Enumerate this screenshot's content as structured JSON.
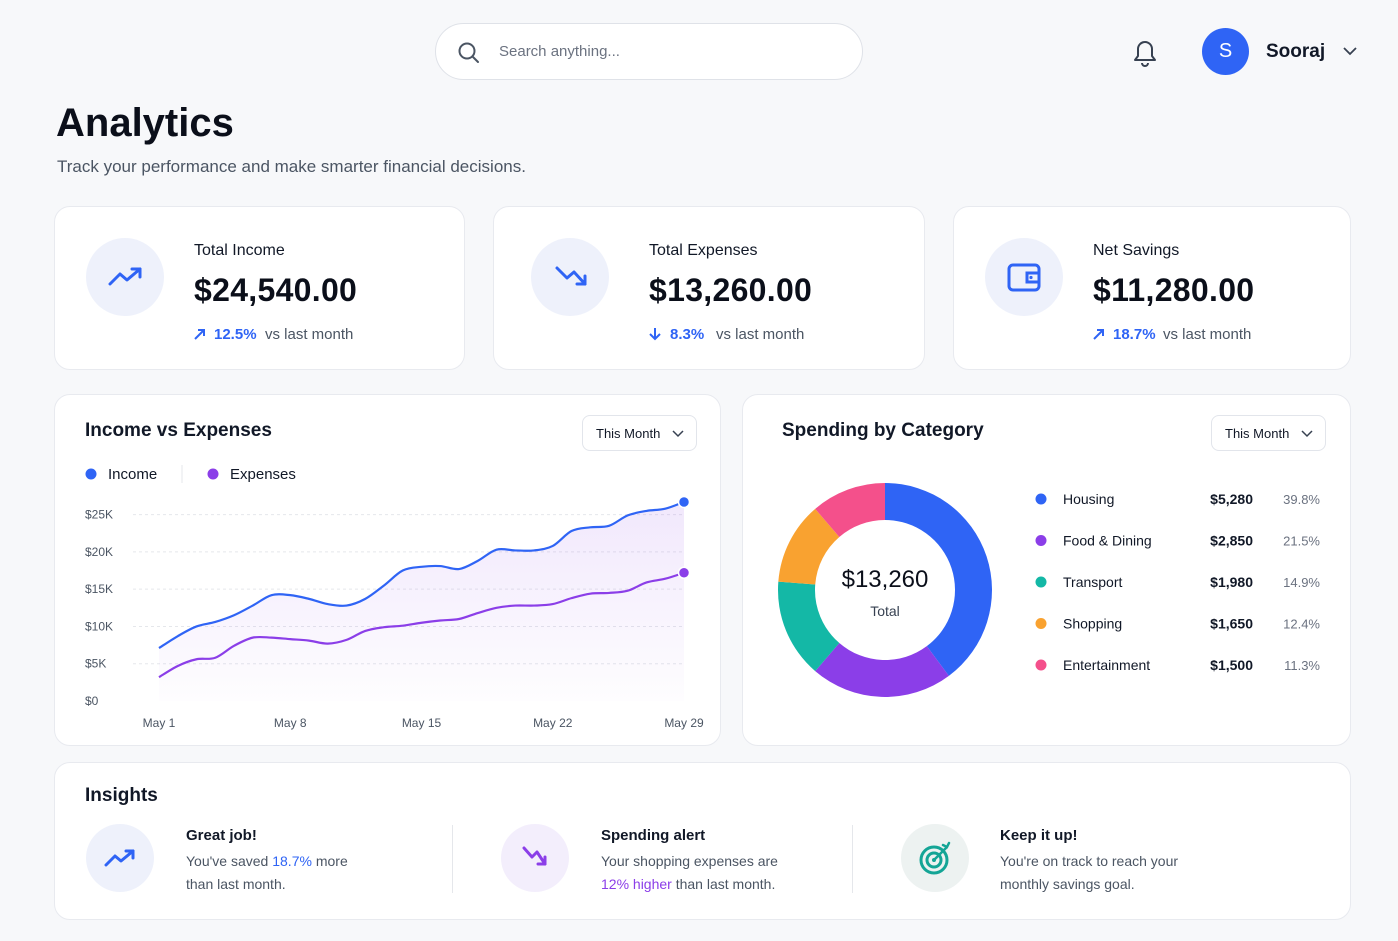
{
  "header": {
    "search_placeholder": "Search anything...",
    "avatar_initial": "S",
    "user_name": "Sooraj"
  },
  "page": {
    "title": "Analytics",
    "subtitle": "Track your performance and make smarter financial decisions."
  },
  "stats": [
    {
      "label": "Total Income",
      "value": "$24,540.00",
      "change": "12.5%",
      "note": "vs last month"
    },
    {
      "label": "Total Expenses",
      "value": "$13,260.00",
      "change": "8.3%",
      "note": "vs last month"
    },
    {
      "label": "Net Savings",
      "value": "$11,280.00",
      "change": "18.7%",
      "note": "vs last month"
    }
  ],
  "income_chart": {
    "type": "line",
    "title": "Income vs Expenses",
    "filter": "This Month",
    "categories": [
      "May 1",
      null,
      null,
      null,
      null,
      null,
      null,
      "May 8",
      null,
      null,
      null,
      null,
      null,
      null,
      "May 15",
      null,
      null,
      null,
      null,
      null,
      null,
      "May 22",
      null,
      null,
      null,
      null,
      null,
      null,
      "May 29"
    ],
    "series": [
      {
        "name": "Income",
        "color": "#2f64f5",
        "values": [
          7100,
          8700,
          10000,
          10600,
          11500,
          12800,
          14200,
          14200,
          13700,
          13000,
          12800,
          13700,
          15500,
          17500,
          18000,
          18100,
          17700,
          18800,
          20300,
          20200,
          20200,
          20800,
          22800,
          23300,
          23500,
          24900,
          25500,
          25800,
          26700
        ]
      },
      {
        "name": "Expenses",
        "color": "#8b3ee8",
        "values": [
          3200,
          4700,
          5600,
          5800,
          7400,
          8500,
          8500,
          8300,
          8100,
          7700,
          8200,
          9400,
          9900,
          10100,
          10500,
          10800,
          11000,
          11800,
          12500,
          12800,
          12800,
          13000,
          13800,
          14400,
          14500,
          14800,
          15900,
          16400,
          17200
        ]
      }
    ],
    "ylim": [
      0,
      27500
    ],
    "yticks": [
      {
        "value": 0,
        "label": "$0"
      },
      {
        "value": 5000,
        "label": "$5K"
      },
      {
        "value": 10000,
        "label": "$10K"
      },
      {
        "value": 15000,
        "label": "$15K"
      },
      {
        "value": 20000,
        "label": "$20K"
      },
      {
        "value": 25000,
        "label": "$25K"
      }
    ],
    "grid": true
  },
  "spending_chart": {
    "type": "donut",
    "title": "Spending by Category",
    "filter": "This Month",
    "center_value": "$13,260",
    "center_label": "Total",
    "categories": [
      "Housing",
      "Food & Dining",
      "Transport",
      "Shopping",
      "Entertainment"
    ],
    "values": [
      5280,
      2850,
      1980,
      1650,
      1500
    ],
    "value_labels": [
      "$5,280",
      "$2,850",
      "$1,980",
      "$1,650",
      "$1,500"
    ],
    "shares": [
      39.8,
      21.5,
      14.9,
      12.4,
      11.3
    ],
    "share_labels": [
      "39.8%",
      "21.5%",
      "14.9%",
      "12.4%",
      "11.3%"
    ],
    "colors": [
      "#2f64f5",
      "#8b3ee8",
      "#14b8a6",
      "#f9a230",
      "#f4508b"
    ]
  },
  "insights": {
    "title": "Insights",
    "items": [
      {
        "title": "Great job!",
        "text": [
          "You've saved ",
          "18.7%",
          " more than last month."
        ]
      },
      {
        "title": "Spending alert",
        "text": [
          "Your shopping expenses are ",
          "12% higher",
          " than last month."
        ]
      },
      {
        "title": "Keep it up!",
        "text": [
          "You're on track to reach your monthly savings goal."
        ]
      }
    ]
  }
}
